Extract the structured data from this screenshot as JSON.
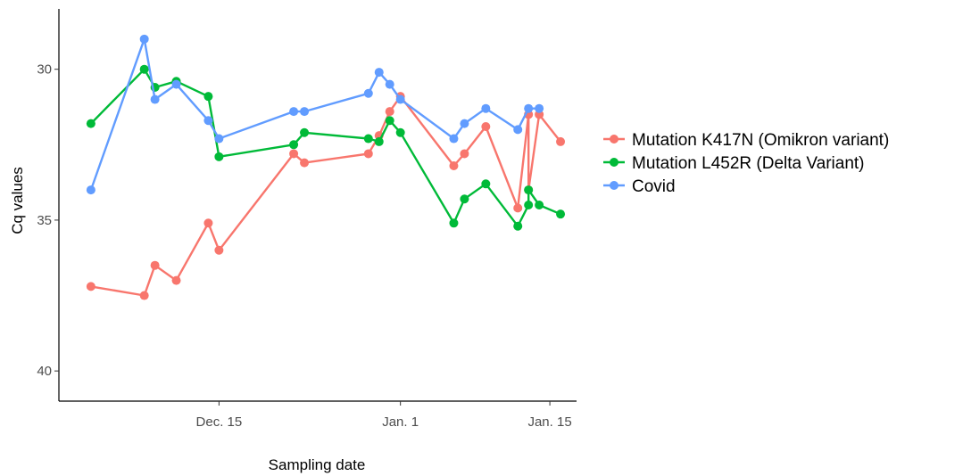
{
  "chart_data": {
    "type": "line",
    "xlabel": "Sampling date",
    "ylabel": "Cq values",
    "x_ticks": [
      {
        "date": "2021-12-15",
        "label": "Dec. 15"
      },
      {
        "date": "2022-01-01",
        "label": "Jan. 1"
      },
      {
        "date": "2022-01-15",
        "label": "Jan. 15"
      }
    ],
    "y_ticks": [
      30,
      35,
      40
    ],
    "y_reversed": true,
    "ylim": [
      41,
      28
    ],
    "xlim": [
      "2021-11-30",
      "2022-01-17"
    ],
    "grid": false,
    "legend_position": "right",
    "series": [
      {
        "name": "Mutation K417N (Omikron variant)",
        "color": "#F8766D",
        "points": [
          {
            "x": "2021-12-03",
            "y": 37.2
          },
          {
            "x": "2021-12-08",
            "y": 37.5
          },
          {
            "x": "2021-12-09",
            "y": 36.5
          },
          {
            "x": "2021-12-11",
            "y": 37.0
          },
          {
            "x": "2021-12-14",
            "y": 35.1
          },
          {
            "x": "2021-12-15",
            "y": 36.0
          },
          {
            "x": "2021-12-22",
            "y": 32.8
          },
          {
            "x": "2021-12-23",
            "y": 33.1
          },
          {
            "x": "2021-12-29",
            "y": 32.8
          },
          {
            "x": "2021-12-30",
            "y": 32.2
          },
          {
            "x": "2021-12-31",
            "y": 31.4
          },
          {
            "x": "2022-01-01",
            "y": 30.9
          },
          {
            "x": "2022-01-06",
            "y": 33.2
          },
          {
            "x": "2022-01-07",
            "y": 32.8
          },
          {
            "x": "2022-01-09",
            "y": 31.9
          },
          {
            "x": "2022-01-12",
            "y": 34.6
          },
          {
            "x": "2022-01-13",
            "y": 31.5
          },
          {
            "x": "2022-01-13",
            "y": 34.0
          },
          {
            "x": "2022-01-14",
            "y": 31.5
          },
          {
            "x": "2022-01-16",
            "y": 32.4
          }
        ]
      },
      {
        "name": "Mutation L452R (Delta Variant)",
        "color": "#00BA38",
        "points": [
          {
            "x": "2021-12-03",
            "y": 31.8
          },
          {
            "x": "2021-12-08",
            "y": 30.0
          },
          {
            "x": "2021-12-09",
            "y": 30.6
          },
          {
            "x": "2021-12-11",
            "y": 30.4
          },
          {
            "x": "2021-12-14",
            "y": 30.9
          },
          {
            "x": "2021-12-15",
            "y": 32.9
          },
          {
            "x": "2021-12-22",
            "y": 32.5
          },
          {
            "x": "2021-12-23",
            "y": 32.1
          },
          {
            "x": "2021-12-29",
            "y": 32.3
          },
          {
            "x": "2021-12-30",
            "y": 32.4
          },
          {
            "x": "2021-12-31",
            "y": 31.7
          },
          {
            "x": "2022-01-01",
            "y": 32.1
          },
          {
            "x": "2022-01-06",
            "y": 35.1
          },
          {
            "x": "2022-01-07",
            "y": 34.3
          },
          {
            "x": "2022-01-09",
            "y": 33.8
          },
          {
            "x": "2022-01-12",
            "y": 35.2
          },
          {
            "x": "2022-01-13",
            "y": 34.5
          },
          {
            "x": "2022-01-13",
            "y": 34.0
          },
          {
            "x": "2022-01-14",
            "y": 34.5
          },
          {
            "x": "2022-01-16",
            "y": 34.8
          }
        ]
      },
      {
        "name": "Covid",
        "color": "#619CFF",
        "points": [
          {
            "x": "2021-12-03",
            "y": 34.0
          },
          {
            "x": "2021-12-08",
            "y": 29.0
          },
          {
            "x": "2021-12-09",
            "y": 31.0
          },
          {
            "x": "2021-12-11",
            "y": 30.5
          },
          {
            "x": "2021-12-14",
            "y": 31.7
          },
          {
            "x": "2021-12-15",
            "y": 32.3
          },
          {
            "x": "2021-12-22",
            "y": 31.4
          },
          {
            "x": "2021-12-23",
            "y": 31.4
          },
          {
            "x": "2021-12-29",
            "y": 30.8
          },
          {
            "x": "2021-12-30",
            "y": 30.1
          },
          {
            "x": "2021-12-31",
            "y": 30.5
          },
          {
            "x": "2022-01-01",
            "y": 31.0
          },
          {
            "x": "2022-01-06",
            "y": 32.3
          },
          {
            "x": "2022-01-07",
            "y": 31.8
          },
          {
            "x": "2022-01-09",
            "y": 31.3
          },
          {
            "x": "2022-01-12",
            "y": 32.0
          },
          {
            "x": "2022-01-13",
            "y": 31.3
          },
          {
            "x": "2022-01-14",
            "y": 31.3
          }
        ]
      }
    ]
  }
}
